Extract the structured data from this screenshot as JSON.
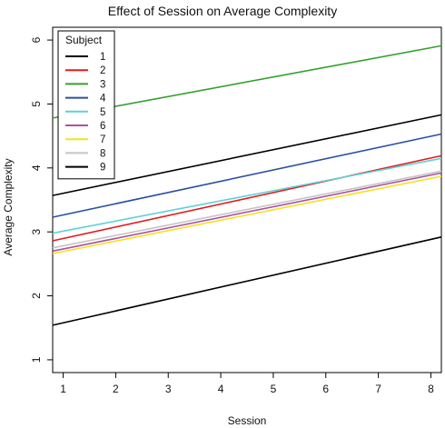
{
  "chart_data": {
    "type": "line",
    "title": "Effect of Session on Average Complexity",
    "xlabel": "Session",
    "ylabel": "Average Complexity",
    "xlim": [
      0.8,
      8.2
    ],
    "ylim": [
      0.8,
      6.2
    ],
    "x_ticks": [
      1,
      2,
      3,
      4,
      5,
      6,
      7,
      8
    ],
    "y_ticks": [
      1,
      2,
      3,
      4,
      5,
      6
    ],
    "grid": false,
    "legend": {
      "title": "Subject",
      "position": "top-left"
    },
    "series": [
      {
        "name": "1",
        "color": "#000000",
        "x": [
          0.8,
          8.2
        ],
        "y": [
          3.57,
          4.83
        ]
      },
      {
        "name": "2",
        "color": "#e41a1c",
        "x": [
          0.8,
          8.2
        ],
        "y": [
          2.86,
          4.19
        ]
      },
      {
        "name": "3",
        "color": "#33a02c",
        "x": [
          0.8,
          8.2
        ],
        "y": [
          4.78,
          5.91
        ]
      },
      {
        "name": "4",
        "color": "#2c4fa3",
        "x": [
          0.8,
          8.2
        ],
        "y": [
          3.23,
          4.53
        ]
      },
      {
        "name": "5",
        "color": "#5ed1d4",
        "x": [
          0.8,
          8.2
        ],
        "y": [
          2.98,
          4.15
        ]
      },
      {
        "name": "6",
        "color": "#b04fa0",
        "x": [
          0.8,
          8.2
        ],
        "y": [
          2.7,
          3.92
        ]
      },
      {
        "name": "7",
        "color": "#f5e21b",
        "x": [
          0.8,
          8.2
        ],
        "y": [
          2.66,
          3.87
        ]
      },
      {
        "name": "8",
        "color": "#c4c4c4",
        "x": [
          0.8,
          8.2
        ],
        "y": [
          2.75,
          3.95
        ]
      },
      {
        "name": "9",
        "color": "#000000",
        "x": [
          0.8,
          8.2
        ],
        "y": [
          1.54,
          2.92
        ]
      }
    ]
  }
}
